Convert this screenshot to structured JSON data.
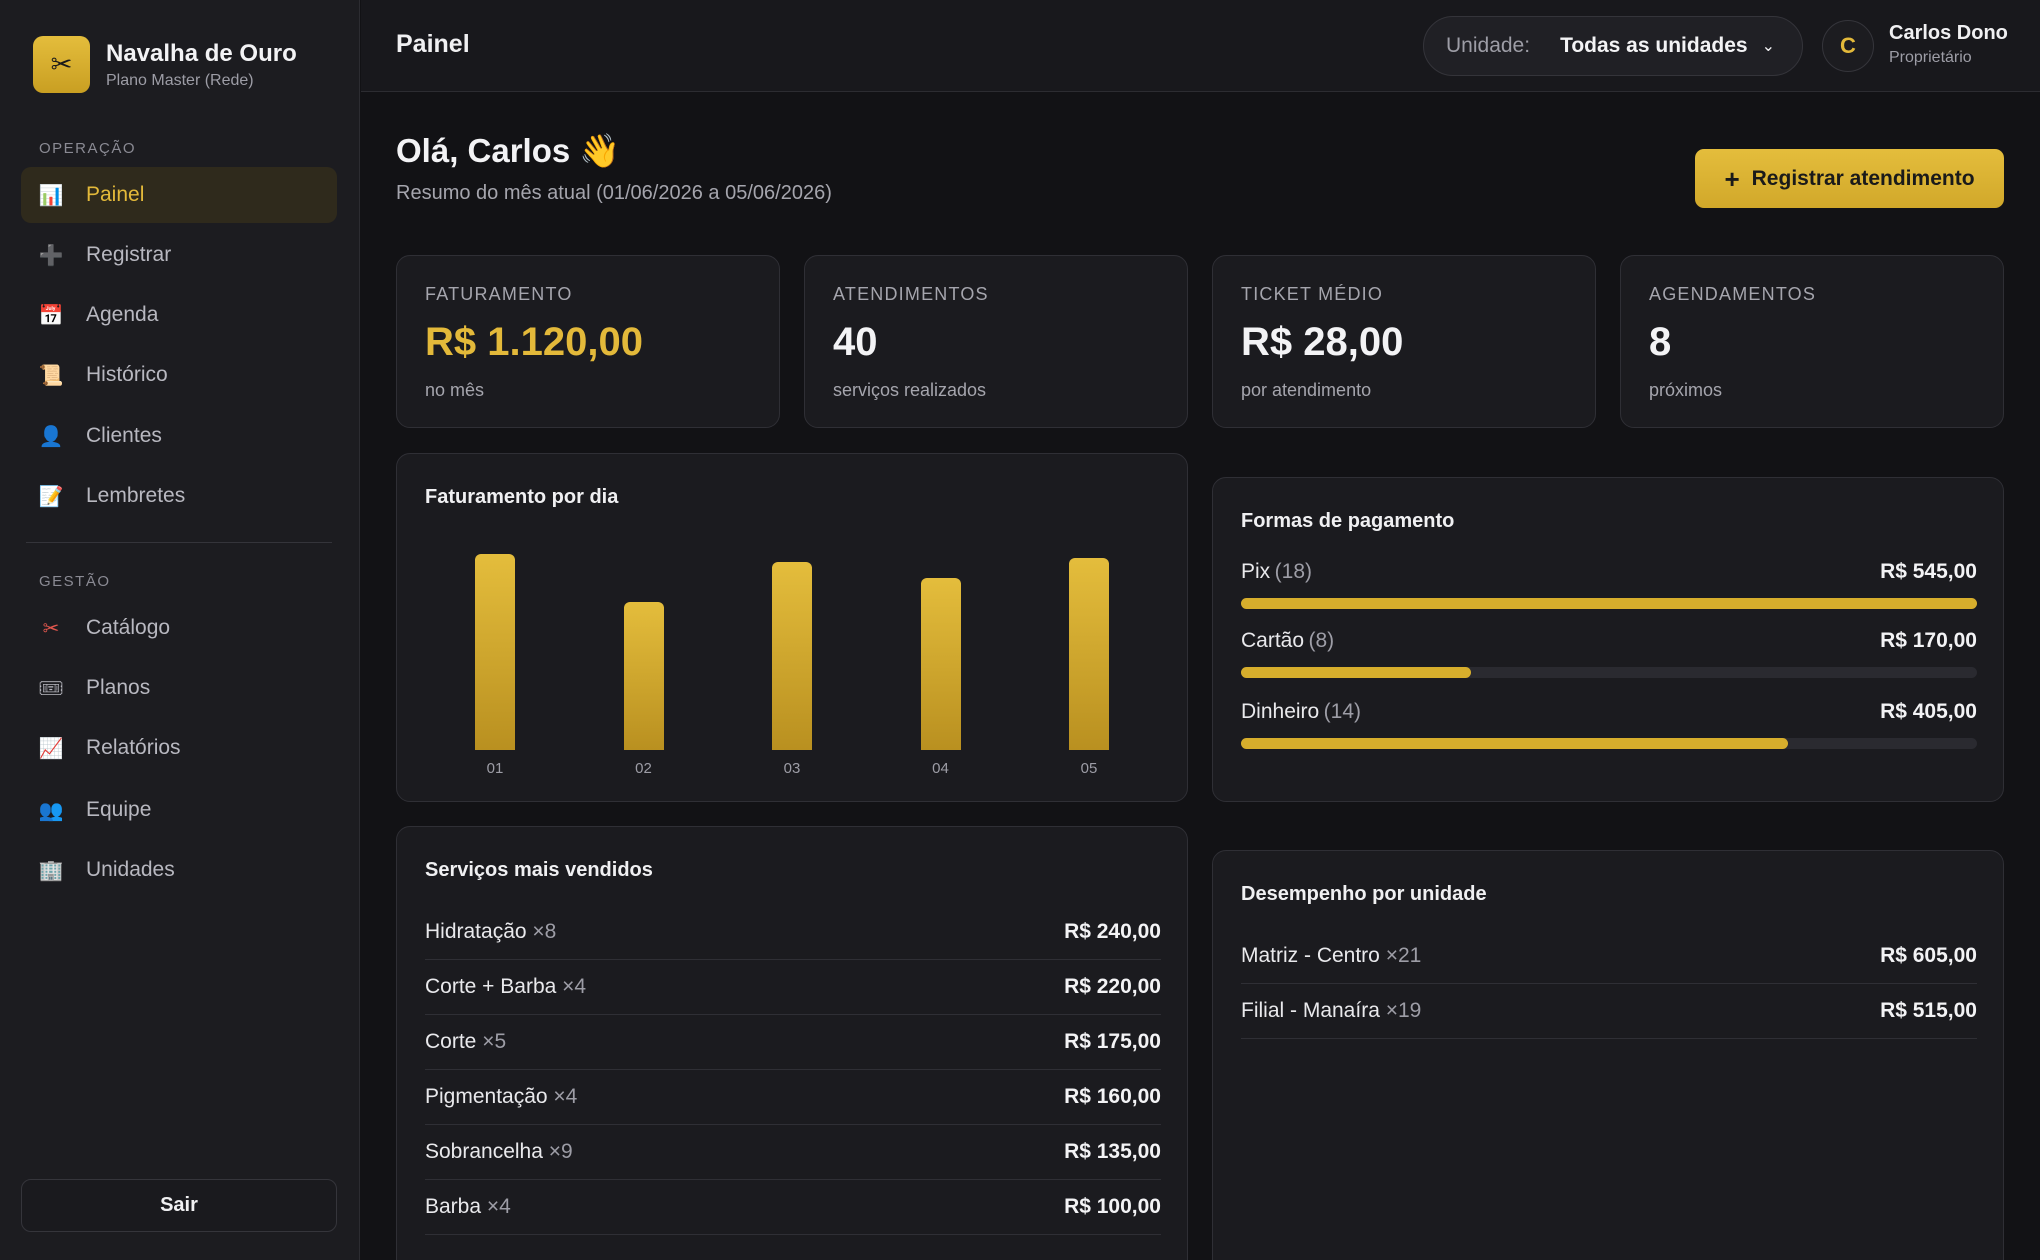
{
  "brand": {
    "name": "Navalha de Ouro",
    "plan": "Plano Master (Rede)",
    "logo_icon": "scissors-icon"
  },
  "sidebar": {
    "section_operacao": "OPERAÇÃO",
    "section_gestao": "GESTÃO",
    "items": [
      {
        "label": "Painel",
        "icon": "📊",
        "active": true
      },
      {
        "label": "Registrar",
        "icon": "➕"
      },
      {
        "label": "Agenda",
        "icon": "📅"
      },
      {
        "label": "Histórico",
        "icon": "📜"
      },
      {
        "label": "Clientes",
        "icon": "👤"
      },
      {
        "label": "Lembretes",
        "icon": "📝"
      },
      {
        "label": "Catálogo",
        "icon": "✂"
      },
      {
        "label": "Planos",
        "icon": "🎟"
      },
      {
        "label": "Relatórios",
        "icon": "📈"
      },
      {
        "label": "Equipe",
        "icon": "👥"
      },
      {
        "label": "Unidades",
        "icon": "🏢"
      }
    ],
    "logout": "Sair"
  },
  "header": {
    "title": "Painel",
    "unit_label": "Unidade:",
    "unit_value": "Todas as unidades",
    "user_initial": "C",
    "user_name": "Carlos Dono",
    "user_role": "Proprietário"
  },
  "main": {
    "greeting": "Olá, Carlos 👋",
    "subtitle": "Resumo do mês atual (01/06/2026 a 05/06/2026)",
    "primary_button": "Registrar atendimento",
    "kpis": [
      {
        "label": "FATURAMENTO",
        "value": "R$ 1.120,00",
        "sub": "no mês"
      },
      {
        "label": "ATENDIMENTOS",
        "value": "40",
        "sub": "serviços realizados"
      },
      {
        "label": "TICKET MÉDIO",
        "value": "R$ 28,00",
        "sub": "por atendimento"
      },
      {
        "label": "AGENDAMENTOS",
        "value": "8",
        "sub": "próximos"
      }
    ],
    "payments": {
      "title": "Formas de pagamento",
      "items": [
        {
          "name": "Pix",
          "count": "(18)",
          "amount": "R$ 545,00",
          "value": 545
        },
        {
          "name": "Cartão",
          "count": "(8)",
          "amount": "R$ 170,00",
          "value": 170
        },
        {
          "name": "Dinheiro",
          "count": "(14)",
          "amount": "R$ 405,00",
          "value": 405
        }
      ]
    },
    "services": {
      "title": "Serviços mais vendidos",
      "items": [
        {
          "name": "Hidratação",
          "qty": "×8",
          "amount": "R$ 240,00"
        },
        {
          "name": "Corte + Barba",
          "qty": "×4",
          "amount": "R$ 220,00"
        },
        {
          "name": "Corte",
          "qty": "×5",
          "amount": "R$ 175,00"
        },
        {
          "name": "Pigmentação",
          "qty": "×4",
          "amount": "R$ 160,00"
        },
        {
          "name": "Sobrancelha",
          "qty": "×9",
          "amount": "R$ 135,00"
        },
        {
          "name": "Barba",
          "qty": "×4",
          "amount": "R$ 100,00"
        }
      ]
    },
    "units": {
      "title": "Desempenho por unidade",
      "items": [
        {
          "name": "Matriz - Centro",
          "qty": "×21",
          "amount": "R$ 605,00"
        },
        {
          "name": "Filial - Manaíra",
          "qty": "×19",
          "amount": "R$ 515,00"
        }
      ]
    }
  },
  "chart_data": {
    "type": "bar",
    "title": "Faturamento por dia",
    "categories": [
      "01",
      "02",
      "03",
      "04",
      "05"
    ],
    "values": [
      245,
      185,
      235,
      215,
      240
    ],
    "ylim": [
      0,
      250
    ],
    "color": "#e3b93a",
    "grid": false
  }
}
